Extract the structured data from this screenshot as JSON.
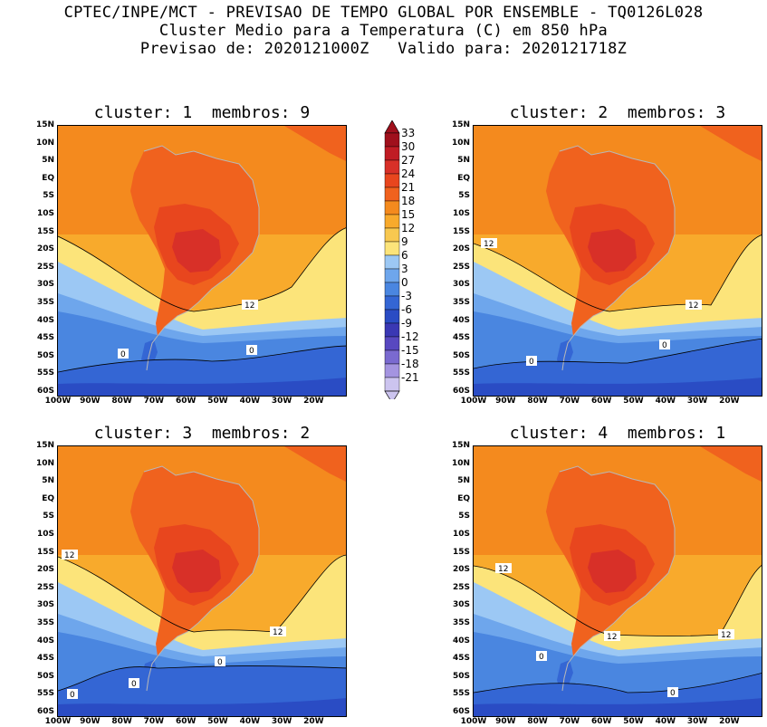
{
  "header": {
    "line1": "CPTEC/INPE/MCT - PREVISAO DE TEMPO GLOBAL POR ENSEMBLE - TQ0126L028",
    "line2": "Cluster Medio para a Temperatura (C) em 850 hPa",
    "line3": "Previsao de: 2020121000Z   Valido para: 2020121718Z"
  },
  "panels": [
    {
      "title": "cluster: 1  membros: 9",
      "contour_labels": [
        "12",
        "0",
        "0"
      ]
    },
    {
      "title": "cluster: 2  membros: 3",
      "contour_labels": [
        "12",
        "12",
        "0",
        "0"
      ]
    },
    {
      "title": "cluster: 3  membros: 2",
      "contour_labels": [
        "12",
        "12",
        "0",
        "0",
        "0"
      ]
    },
    {
      "title": "cluster: 4  membros: 1",
      "contour_labels": [
        "12",
        "12",
        "12",
        "0",
        "0"
      ]
    }
  ],
  "lat_labels": [
    "15N",
    "10N",
    "5N",
    "EQ",
    "5S",
    "10S",
    "15S",
    "20S",
    "25S",
    "30S",
    "35S",
    "40S",
    "45S",
    "50S",
    "55S",
    "60S"
  ],
  "lon_labels": [
    "100W",
    "90W",
    "80W",
    "70W",
    "60W",
    "50W",
    "40W",
    "30W",
    "20W"
  ],
  "colorbar": {
    "labels": [
      "33",
      "30",
      "27",
      "24",
      "21",
      "18",
      "15",
      "12",
      "9",
      "6",
      "3",
      "0",
      "-3",
      "-6",
      "-9",
      "-12",
      "-15",
      "-18",
      "-21"
    ],
    "colors": [
      "#a0101c",
      "#c01c24",
      "#d83028",
      "#e8461e",
      "#f0621e",
      "#f48a1e",
      "#f8aa2c",
      "#f8c850",
      "#fce47a",
      "#9cc8f4",
      "#6ea6ec",
      "#4a86e0",
      "#3466d4",
      "#2a4cc4",
      "#3a38b4",
      "#5848c0",
      "#7a6ad0",
      "#a494e0",
      "#ccc4ef"
    ]
  }
}
